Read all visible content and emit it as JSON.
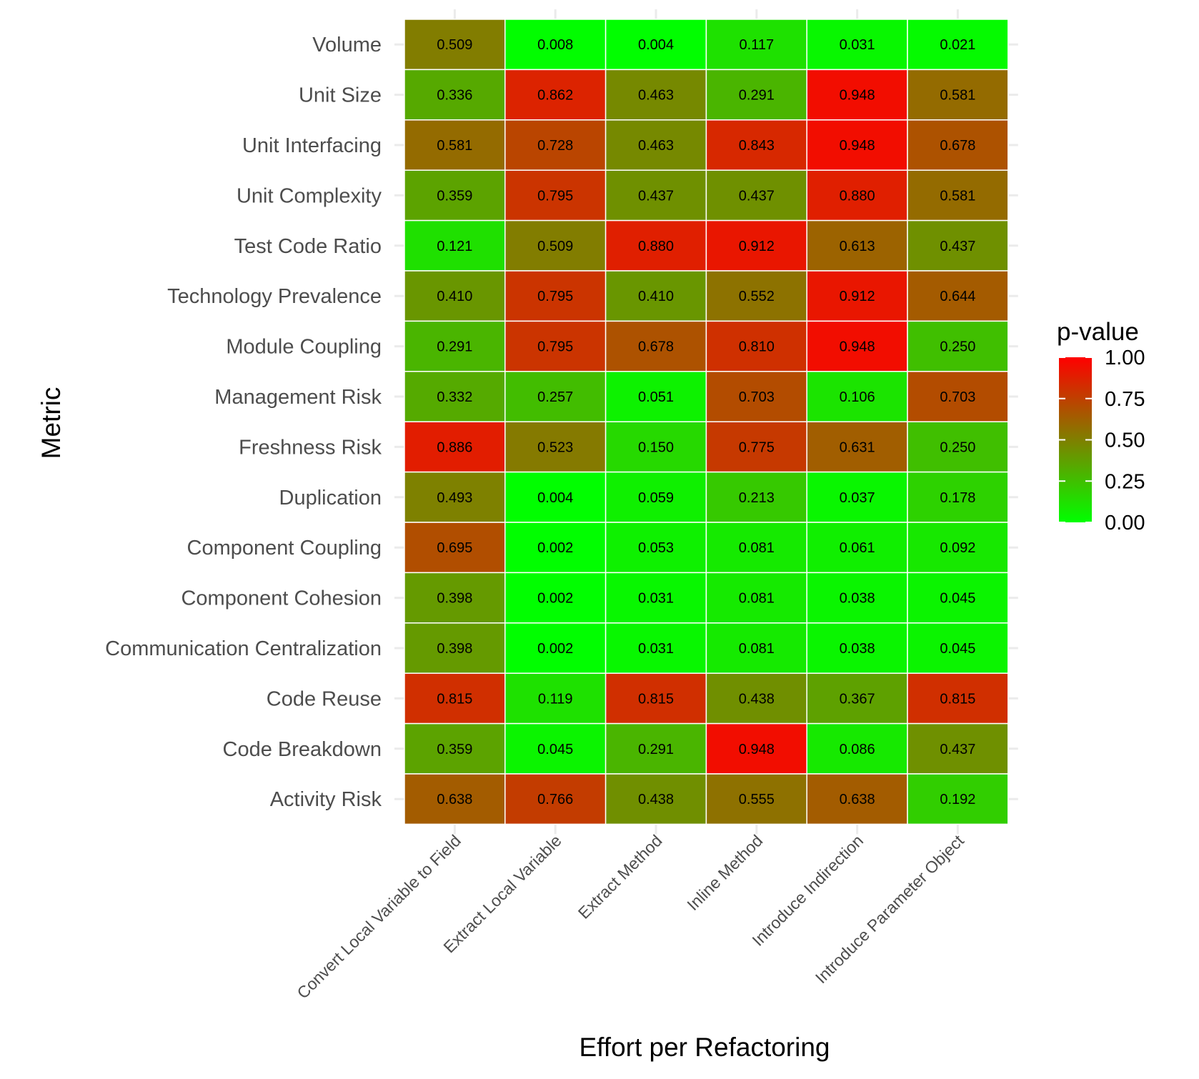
{
  "chart_data": {
    "type": "heatmap",
    "title": "",
    "xlabel": "Effort per Refactoring",
    "ylabel": "Metric",
    "x_categories": [
      "Convert Local Variable to Field",
      "Extract Local Variable",
      "Extract Method",
      "Inline Method",
      "Introduce Indirection",
      "Introduce Parameter Object"
    ],
    "y_categories": [
      "Volume",
      "Unit Size",
      "Unit Interfacing",
      "Unit Complexity",
      "Test Code Ratio",
      "Technology Prevalence",
      "Module Coupling",
      "Management Risk",
      "Freshness Risk",
      "Duplication",
      "Component Coupling",
      "Component Cohesion",
      "Communication Centralization",
      "Code Reuse",
      "Code Breakdown",
      "Activity Risk"
    ],
    "values": [
      [
        0.509,
        0.008,
        0.004,
        0.117,
        0.031,
        0.021
      ],
      [
        0.336,
        0.862,
        0.463,
        0.291,
        0.948,
        0.581
      ],
      [
        0.581,
        0.728,
        0.463,
        0.843,
        0.948,
        0.678
      ],
      [
        0.359,
        0.795,
        0.437,
        0.437,
        0.88,
        0.581
      ],
      [
        0.121,
        0.509,
        0.88,
        0.912,
        0.613,
        0.437
      ],
      [
        0.41,
        0.795,
        0.41,
        0.552,
        0.912,
        0.644
      ],
      [
        0.291,
        0.795,
        0.678,
        0.81,
        0.948,
        0.25
      ],
      [
        0.332,
        0.257,
        0.051,
        0.703,
        0.106,
        0.703
      ],
      [
        0.886,
        0.523,
        0.15,
        0.775,
        0.631,
        0.25
      ],
      [
        0.493,
        0.004,
        0.059,
        0.213,
        0.037,
        0.178
      ],
      [
        0.695,
        0.002,
        0.053,
        0.081,
        0.061,
        0.092
      ],
      [
        0.398,
        0.002,
        0.031,
        0.081,
        0.038,
        0.045
      ],
      [
        0.398,
        0.002,
        0.031,
        0.081,
        0.038,
        0.045
      ],
      [
        0.815,
        0.119,
        0.815,
        0.438,
        0.367,
        0.815
      ],
      [
        0.359,
        0.045,
        0.291,
        0.948,
        0.086,
        0.437
      ],
      [
        0.638,
        0.766,
        0.438,
        0.555,
        0.638,
        0.192
      ]
    ],
    "legend": {
      "title": "p-value",
      "range": [
        0,
        1
      ],
      "ticks": [
        "1.00",
        "0.75",
        "0.50",
        "0.25",
        "0.00"
      ],
      "low_color": "#00ff00",
      "high_color": "#ff0000",
      "placement": "right"
    },
    "grid": true
  }
}
